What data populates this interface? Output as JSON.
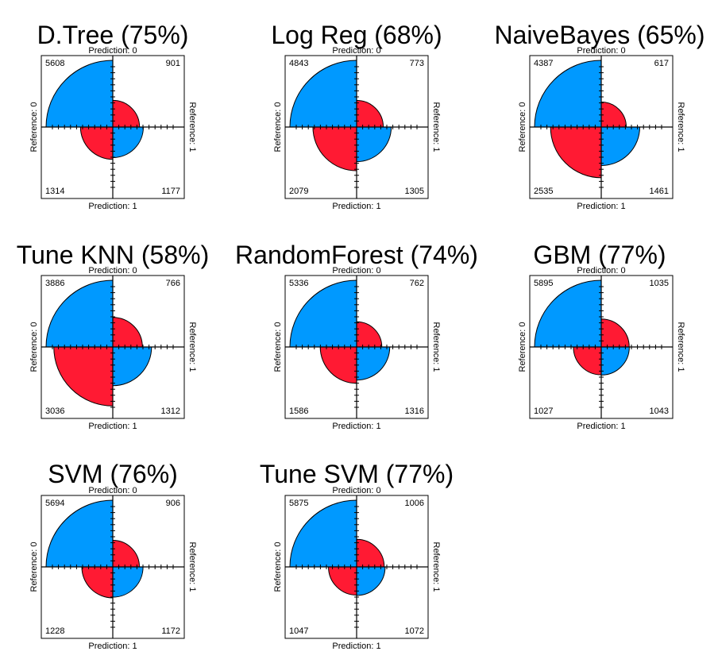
{
  "chart_data": [
    {
      "type": "fourfold",
      "title": "D.Tree (75%)",
      "top_label": "Prediction: 0",
      "bottom_label": "Prediction: 1",
      "left_label": "Reference: 0",
      "right_label": "Reference: 1",
      "counts": {
        "top_left": 5608,
        "top_right": 901,
        "bottom_left": 1314,
        "bottom_right": 1177
      }
    },
    {
      "type": "fourfold",
      "title": "Log Reg (68%)",
      "top_label": "Prediction: 0",
      "bottom_label": "Prediction: 1",
      "left_label": "Reference: 0",
      "right_label": "Reference: 1",
      "counts": {
        "top_left": 4843,
        "top_right": 773,
        "bottom_left": 2079,
        "bottom_right": 1305
      }
    },
    {
      "type": "fourfold",
      "title": "NaiveBayes (65%)",
      "top_label": "Prediction: 0",
      "bottom_label": "Prediction: 1",
      "left_label": "Reference: 0",
      "right_label": "Reference: 1",
      "counts": {
        "top_left": 4387,
        "top_right": 617,
        "bottom_left": 2535,
        "bottom_right": 1461
      }
    },
    {
      "type": "fourfold",
      "title": "Tune KNN (58%)",
      "top_label": "Prediction: 0",
      "bottom_label": "Prediction: 1",
      "left_label": "Reference: 0",
      "right_label": "Reference: 1",
      "counts": {
        "top_left": 3886,
        "top_right": 766,
        "bottom_left": 3036,
        "bottom_right": 1312
      }
    },
    {
      "type": "fourfold",
      "title": "RandomForest (74%)",
      "top_label": "Prediction: 0",
      "bottom_label": "Prediction: 1",
      "left_label": "Reference: 0",
      "right_label": "Reference: 1",
      "counts": {
        "top_left": 5336,
        "top_right": 762,
        "bottom_left": 1586,
        "bottom_right": 1316
      }
    },
    {
      "type": "fourfold",
      "title": "GBM (77%)",
      "top_label": "Prediction: 0",
      "bottom_label": "Prediction: 1",
      "left_label": "Reference: 0",
      "right_label": "Reference: 1",
      "counts": {
        "top_left": 5895,
        "top_right": 1035,
        "bottom_left": 1027,
        "bottom_right": 1043
      }
    },
    {
      "type": "fourfold",
      "title": "SVM (76%)",
      "top_label": "Prediction: 0",
      "bottom_label": "Prediction: 1",
      "left_label": "Reference: 0",
      "right_label": "Reference: 1",
      "counts": {
        "top_left": 5694,
        "top_right": 906,
        "bottom_left": 1228,
        "bottom_right": 1172
      }
    },
    {
      "type": "fourfold",
      "title": "Tune SVM (77%)",
      "top_label": "Prediction: 0",
      "bottom_label": "Prediction: 1",
      "left_label": "Reference: 0",
      "right_label": "Reference: 1",
      "counts": {
        "top_left": 5875,
        "top_right": 1006,
        "bottom_left": 1047,
        "bottom_right": 1072
      }
    }
  ],
  "colors": {
    "agree": "#0099ff",
    "disagree": "#ff1a33",
    "axis": "#000000"
  }
}
